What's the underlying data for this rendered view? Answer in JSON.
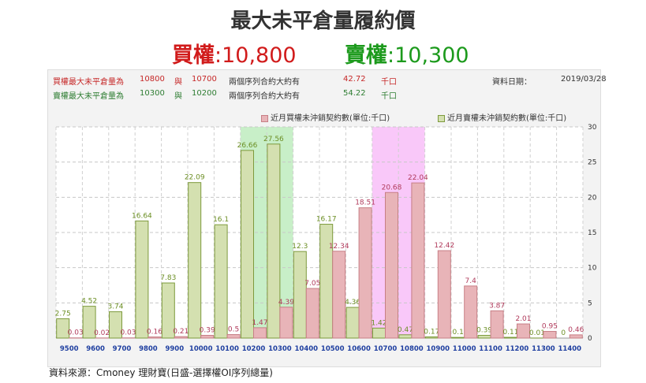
{
  "title": "最大未平倉量履約價",
  "subtitle": {
    "call_label": "買權",
    "call_value": ":10,800",
    "put_label": "賣權",
    "put_value": ":10,300"
  },
  "info": {
    "call_row": {
      "label": "買權最大未平倉量為",
      "strike1": "10800",
      "conj": "與",
      "strike2": "10700",
      "desc": "兩個序列合約大約有",
      "amount": "42.72",
      "unit": "千口"
    },
    "put_row": {
      "label": "賣權最大未平倉量為",
      "strike1": "10300",
      "conj": "與",
      "strike2": "10200",
      "desc": "兩個序列合約大約有",
      "amount": "54.22",
      "unit": "千口"
    },
    "date_label": "資料日期：",
    "date_value": "2019/03/28"
  },
  "legend": {
    "call": "近月買權未沖銷契約數(單位:千口)",
    "put": "近月賣權未沖銷契約數(單位:千口)"
  },
  "footer": "資料來源：Cmoney 理財寶(日盛-選擇權OI序列總量)",
  "colors": {
    "call_fill": "#e8b4b8",
    "call_stroke": "#c77f86",
    "call_label": "#b03a5b",
    "put_fill": "#d4e0b0",
    "put_stroke": "#7d9a3c",
    "put_label": "#6b8e23",
    "highlight_put": "#c8efc8",
    "highlight_call": "#f9c8f9",
    "axis_label": "#1f3fa0"
  },
  "chart_data": {
    "type": "bar",
    "categories": [
      "9500",
      "9600",
      "9700",
      "9800",
      "9900",
      "10000",
      "10100",
      "10200",
      "10300",
      "10400",
      "10500",
      "10600",
      "10700",
      "10800",
      "10900",
      "11000",
      "11100",
      "11200",
      "11300",
      "11400"
    ],
    "series": [
      {
        "name": "近月買權未沖銷契約數(單位:千口)",
        "values": [
          0.03,
          0.02,
          0.03,
          0.16,
          0.21,
          0.39,
          0.5,
          1.47,
          4.39,
          7.05,
          12.34,
          18.51,
          20.68,
          22.04,
          12.42,
          7.4,
          3.87,
          2.01,
          0.95,
          0.46
        ]
      },
      {
        "name": "近月賣權未沖銷契約數(單位:千口)",
        "values": [
          2.75,
          4.52,
          3.74,
          16.64,
          7.83,
          22.09,
          16.1,
          26.66,
          27.56,
          12.3,
          16.17,
          4.36,
          1.42,
          0.47,
          0.17,
          0.1,
          0.39,
          0.11,
          0.01,
          0
        ]
      }
    ],
    "value_labels": {
      "call": [
        "0.03",
        "0.02",
        "0.03",
        "0.16",
        "0.21",
        "0.39",
        "0.5",
        "1.47",
        "4.39",
        "7.05",
        "12.34",
        "18.51",
        "20.68",
        "22.04",
        "12.42",
        "7.4",
        "3.87",
        "2.01",
        "0.95",
        "0.46"
      ],
      "put": [
        "2.75",
        "4.52",
        "3.74",
        "16.64",
        "7.83",
        "22.09",
        "16.1",
        "26.66",
        "27.56",
        "12.3",
        "16.17",
        "4.36",
        "1.42",
        "0.47",
        "0.17",
        "0.1",
        "0.39",
        "0.11",
        "0.01",
        "0"
      ]
    },
    "highlight": {
      "put_category": "10200",
      "call_category": "10700"
    },
    "ylim": [
      0,
      30
    ],
    "yticks": [
      0,
      5,
      10,
      15,
      20,
      25,
      30
    ],
    "grid": true,
    "legend_position": "top-right"
  }
}
